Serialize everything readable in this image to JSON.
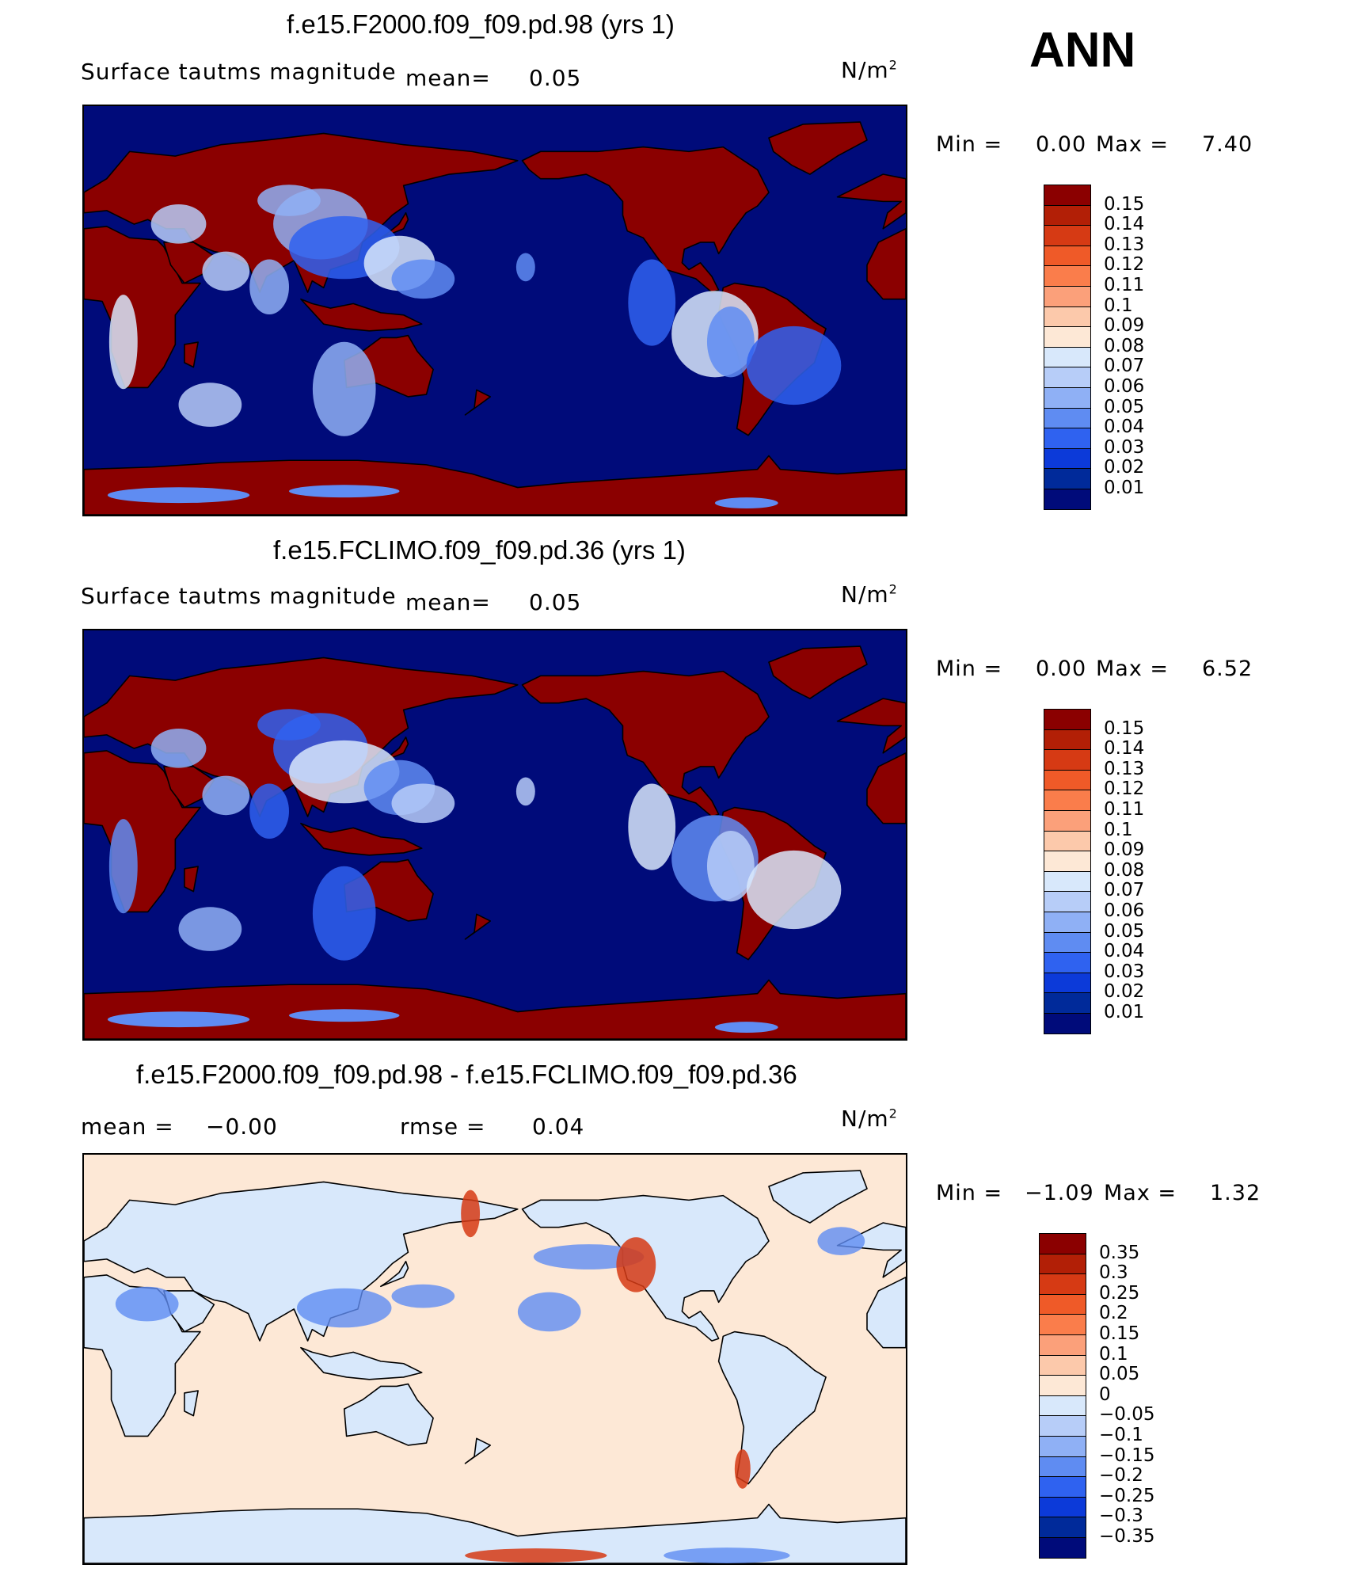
{
  "season": "ANN",
  "units_base": "N/m",
  "units_exp": "2",
  "panels": [
    {
      "title": "f.e15.F2000.f09_f09.pd.98 (yrs 1)",
      "subtitle_left": "Surface tautms magnitude",
      "mean_label": "mean=",
      "mean_value": "0.05",
      "min_label": "Min  =",
      "min_value": "0.00",
      "max_label": "Max  =",
      "max_value": "7.40"
    },
    {
      "title": "f.e15.FCLIMO.f09_f09.pd.36 (yrs 1)",
      "subtitle_left": "Surface tautms magnitude",
      "mean_label": "mean=",
      "mean_value": "0.05",
      "min_label": "Min  =",
      "min_value": "0.00",
      "max_label": "Max  =",
      "max_value": "6.52"
    },
    {
      "title": "f.e15.F2000.f09_f09.pd.98 - f.e15.FCLIMO.f09_f09.pd.36",
      "mean_label": "mean  =",
      "mean_value": "−0.00",
      "rmse_label": "rmse  =",
      "rmse_value": "0.04",
      "min_label": "Min  =",
      "min_value": "−1.09",
      "max_label": "Max  =",
      "max_value": "1.32"
    }
  ],
  "chart_data": [
    {
      "type": "heatmap",
      "title": "f.e15.F2000.f09_f09.pd.98 (yrs 1)",
      "variable": "Surface tautms magnitude",
      "units": "N/m2",
      "mean": 0.05,
      "min": 0.0,
      "max": 7.4,
      "colorbar_levels": [
        "0.15",
        "0.14",
        "0.13",
        "0.12",
        "0.11",
        "0.1",
        "0.09",
        "0.08",
        "0.07",
        "0.06",
        "0.05",
        "0.04",
        "0.03",
        "0.02",
        "0.01"
      ],
      "colorbar_colors": [
        "#8b0000",
        "#b21f06",
        "#d63a14",
        "#ef5a28",
        "#fa7d4b",
        "#fba07a",
        "#fcc9ab",
        "#fde8d6",
        "#d8e8fb",
        "#b7cdf8",
        "#8fb0f5",
        "#5f8cf2",
        "#2f62f0",
        "#0c3ad9",
        "#002a9a",
        "#000b7a"
      ],
      "ocean_color": "#000b7a"
    },
    {
      "type": "heatmap",
      "title": "f.e15.FCLIMO.f09_f09.pd.36 (yrs 1)",
      "variable": "Surface tautms magnitude",
      "units": "N/m2",
      "mean": 0.05,
      "min": 0.0,
      "max": 6.52,
      "colorbar_levels": [
        "0.15",
        "0.14",
        "0.13",
        "0.12",
        "0.11",
        "0.1",
        "0.09",
        "0.08",
        "0.07",
        "0.06",
        "0.05",
        "0.04",
        "0.03",
        "0.02",
        "0.01"
      ],
      "colorbar_colors": [
        "#8b0000",
        "#b21f06",
        "#d63a14",
        "#ef5a28",
        "#fa7d4b",
        "#fba07a",
        "#fcc9ab",
        "#fde8d6",
        "#d8e8fb",
        "#b7cdf8",
        "#8fb0f5",
        "#5f8cf2",
        "#2f62f0",
        "#0c3ad9",
        "#002a9a",
        "#000b7a"
      ],
      "ocean_color": "#000b7a"
    },
    {
      "type": "heatmap",
      "title": "f.e15.F2000.f09_f09.pd.98 - f.e15.FCLIMO.f09_f09.pd.36",
      "units": "N/m2",
      "mean": -0.0,
      "rmse": 0.04,
      "min": -1.09,
      "max": 1.32,
      "colorbar_levels": [
        "0.35",
        "0.3",
        "0.25",
        "0.2",
        "0.15",
        "0.1",
        "0.05",
        "0",
        "−0.05",
        "−0.1",
        "−0.15",
        "−0.2",
        "−0.25",
        "−0.3",
        "−0.35"
      ],
      "colorbar_colors": [
        "#8b0000",
        "#b21f06",
        "#d63a14",
        "#ef5a28",
        "#fa7d4b",
        "#fba07a",
        "#fcc9ab",
        "#fde8d6",
        "#d8e8fb",
        "#b7cdf8",
        "#8fb0f5",
        "#5f8cf2",
        "#2f62f0",
        "#0c3ad9",
        "#002a9a",
        "#000b7a"
      ],
      "ocean_color": "#fde8d6"
    }
  ]
}
